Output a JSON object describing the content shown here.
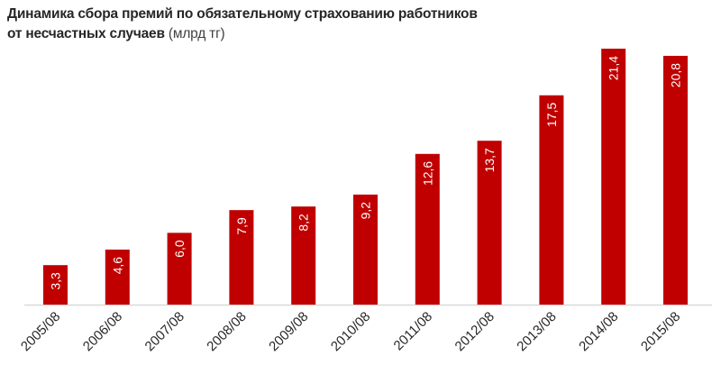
{
  "chart_data": {
    "type": "bar",
    "title_line1": "Динамика сбора премий по обязательному страхованию работников",
    "title_line2": "от несчастных случаев",
    "unit": "(млрд тг)",
    "categories": [
      "2005/08",
      "2006/08",
      "2007/08",
      "2008/08",
      "2009/08",
      "2010/08",
      "2011/08",
      "2012/08",
      "2013/08",
      "2014/08",
      "2015/08"
    ],
    "values": [
      3.3,
      4.6,
      6.0,
      7.9,
      8.2,
      9.2,
      12.6,
      13.7,
      17.5,
      21.4,
      20.8
    ],
    "value_labels": [
      "3,3",
      "4,6",
      "6,0",
      "7,9",
      "8,2",
      "9,2",
      "12,6",
      "13,7",
      "17,5",
      "21,4",
      "20,8"
    ],
    "ylim": [
      0,
      21.4
    ],
    "grid": false,
    "legend": "none",
    "bar_color": "#c00000"
  }
}
